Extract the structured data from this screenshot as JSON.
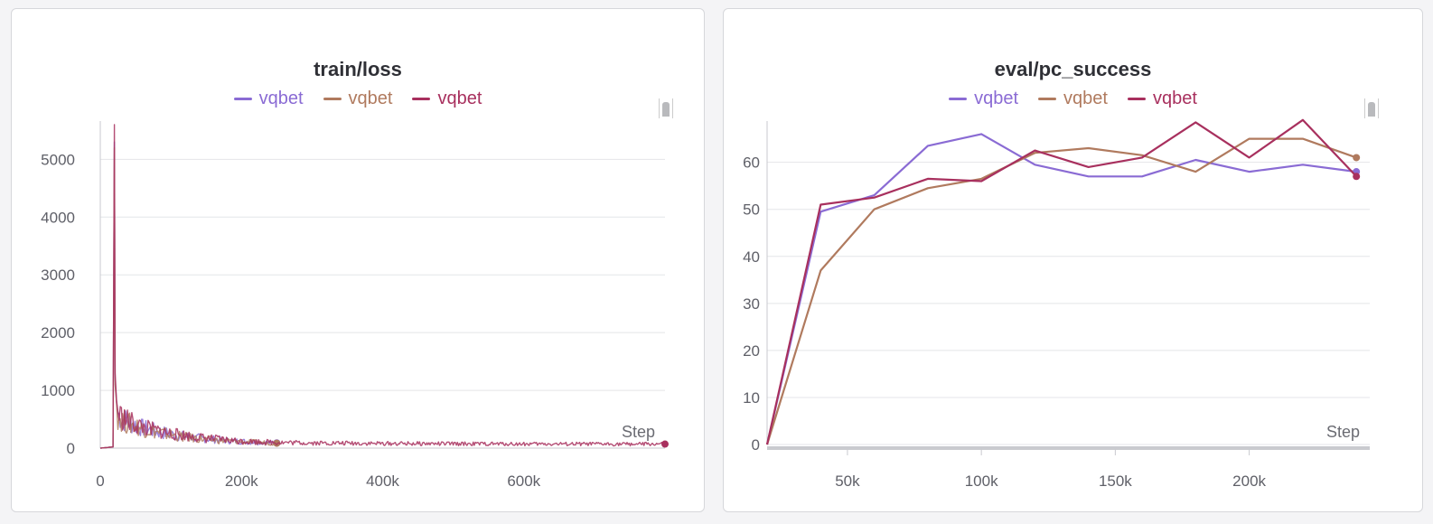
{
  "colors": {
    "purple": "#8a6bd4",
    "brown": "#b07a5e",
    "crimson": "#a8305e",
    "grid": "#e4e5e8",
    "axis": "#c9cacf"
  },
  "chart_data": [
    {
      "type": "line",
      "title": "train/loss",
      "xlabel": "Step",
      "ylabel": "",
      "xlim": [
        0,
        800000
      ],
      "ylim": [
        0,
        5600
      ],
      "x_ticks": [
        0,
        200000,
        400000,
        600000
      ],
      "x_tick_labels": [
        "0",
        "200k",
        "400k",
        "600k"
      ],
      "y_ticks": [
        0,
        1000,
        2000,
        3000,
        4000,
        5000
      ],
      "y_tick_labels": [
        "0",
        "1000",
        "2000",
        "3000",
        "4000",
        "5000"
      ],
      "grid": true,
      "legend_position": "top",
      "series": [
        {
          "name": "vqbet",
          "color": "#8a6bd4",
          "x": [
            0,
            18000,
            20000,
            21000,
            23000,
            25000,
            30000,
            40000,
            60000,
            80000,
            100000,
            120000,
            150000,
            180000,
            210000,
            250000
          ],
          "y": [
            0,
            20,
            5300,
            1200,
            800,
            600,
            520,
            450,
            350,
            290,
            240,
            200,
            160,
            130,
            110,
            90
          ]
        },
        {
          "name": "vqbet",
          "color": "#b07a5e",
          "x": [
            0,
            18000,
            20000,
            21000,
            23000,
            25000,
            30000,
            40000,
            60000,
            80000,
            100000,
            120000,
            150000,
            180000,
            210000,
            250000
          ],
          "y": [
            0,
            20,
            5200,
            1100,
            780,
            580,
            500,
            430,
            340,
            280,
            230,
            190,
            150,
            125,
            105,
            85
          ]
        },
        {
          "name": "vqbet",
          "color": "#a8305e",
          "x": [
            0,
            18000,
            20000,
            21000,
            23000,
            25000,
            30000,
            40000,
            60000,
            80000,
            100000,
            150000,
            200000,
            250000,
            300000,
            400000,
            500000,
            600000,
            700000,
            800000
          ],
          "y": [
            0,
            20,
            5600,
            1300,
            820,
            620,
            540,
            460,
            360,
            300,
            250,
            170,
            120,
            100,
            90,
            80,
            75,
            72,
            70,
            70
          ]
        }
      ]
    },
    {
      "type": "line",
      "title": "eval/pc_success",
      "xlabel": "Step",
      "ylabel": "",
      "xlim": [
        20000,
        245000
      ],
      "ylim": [
        0,
        68
      ],
      "x_ticks": [
        50000,
        100000,
        150000,
        200000
      ],
      "x_tick_labels": [
        "50k",
        "100k",
        "150k",
        "200k"
      ],
      "y_ticks": [
        0,
        10,
        20,
        30,
        40,
        50,
        60
      ],
      "y_tick_labels": [
        "0",
        "10",
        "20",
        "30",
        "40",
        "50",
        "60"
      ],
      "grid": true,
      "legend_position": "top",
      "series": [
        {
          "name": "vqbet",
          "color": "#8a6bd4",
          "x": [
            20000,
            40000,
            60000,
            80000,
            100000,
            120000,
            140000,
            160000,
            180000,
            200000,
            220000,
            240000
          ],
          "y": [
            0,
            49.5,
            53,
            63.5,
            66,
            59.5,
            57,
            57,
            60.5,
            58,
            59.5,
            58
          ]
        },
        {
          "name": "vqbet",
          "color": "#b07a5e",
          "x": [
            20000,
            40000,
            60000,
            80000,
            100000,
            120000,
            140000,
            160000,
            180000,
            200000,
            220000,
            240000
          ],
          "y": [
            0,
            37,
            50,
            54.5,
            56.5,
            62,
            63,
            61.5,
            58,
            65,
            65,
            61
          ]
        },
        {
          "name": "vqbet",
          "color": "#a8305e",
          "x": [
            20000,
            40000,
            60000,
            80000,
            100000,
            120000,
            140000,
            160000,
            180000,
            200000,
            220000,
            240000
          ],
          "y": [
            0,
            51,
            52.5,
            56.5,
            56,
            62.5,
            59,
            61,
            68.5,
            61,
            69,
            57
          ]
        }
      ]
    }
  ]
}
